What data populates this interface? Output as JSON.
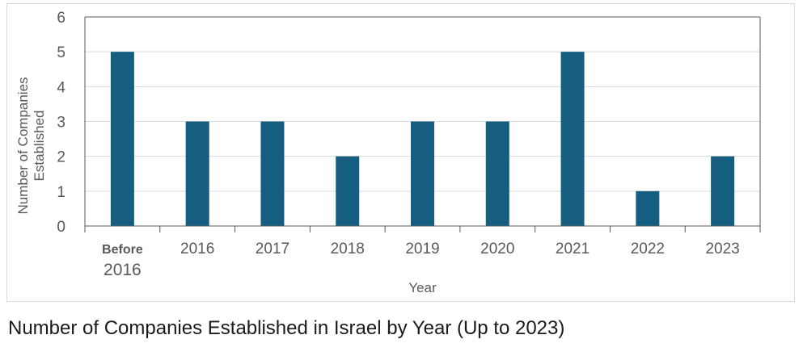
{
  "caption": "Number of Companies Established in Israel by Year (Up to 2023)",
  "chart_data": {
    "type": "bar",
    "title": "",
    "xlabel": "Year",
    "ylabel": "Number of Companies Established",
    "ylabel_lines": [
      "Number of Companies",
      "Established"
    ],
    "categories": [
      "Before 2016",
      "2016",
      "2017",
      "2018",
      "2019",
      "2020",
      "2021",
      "2022",
      "2023"
    ],
    "category_lines": [
      [
        "Before",
        "2016"
      ],
      [
        "2016"
      ],
      [
        "2017"
      ],
      [
        "2018"
      ],
      [
        "2019"
      ],
      [
        "2020"
      ],
      [
        "2021"
      ],
      [
        "2022"
      ],
      [
        "2023"
      ]
    ],
    "values": [
      5,
      3,
      3,
      2,
      3,
      3,
      5,
      1,
      2
    ],
    "ylim": [
      0,
      6
    ],
    "yticks": [
      0,
      1,
      2,
      3,
      4,
      5,
      6
    ],
    "grid": true,
    "legend": "none",
    "bar_color": "#155E82"
  }
}
